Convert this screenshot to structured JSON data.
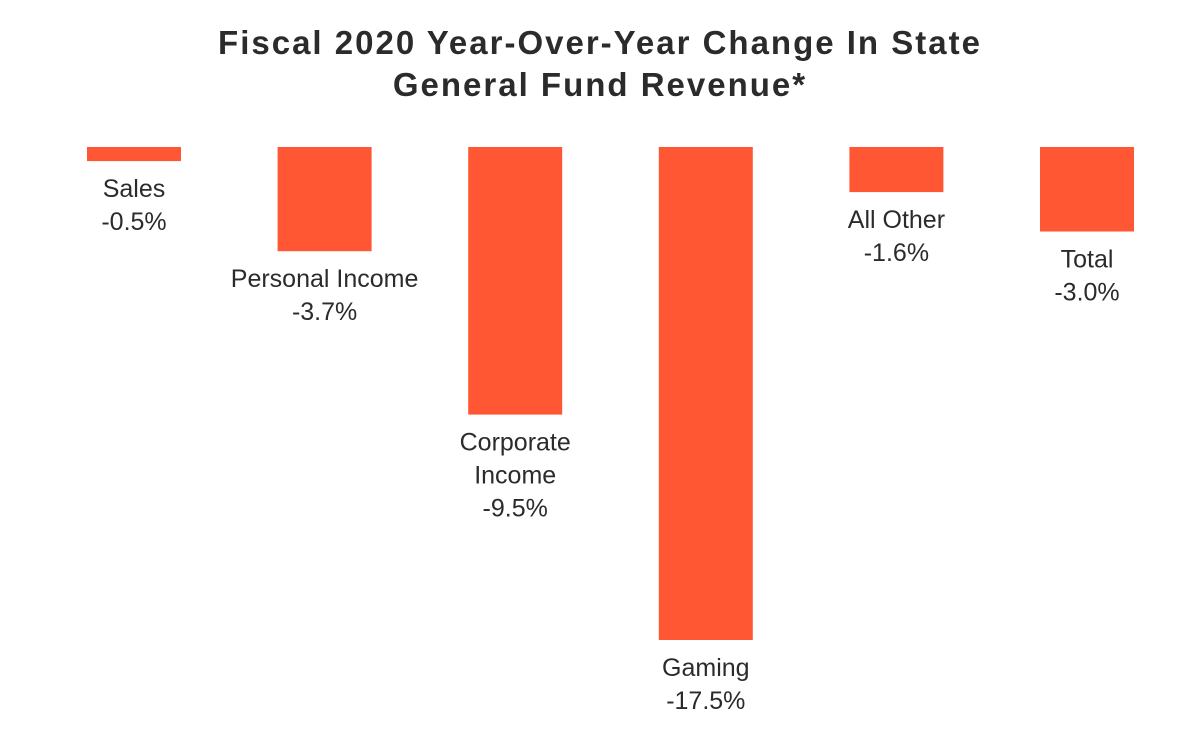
{
  "title_line1": "Fiscal 2020 Year-Over-Year Change In State",
  "title_line2": "General Fund Revenue*",
  "colors": {
    "bar": "#ff5733",
    "text": "#2b2b2b"
  },
  "chart_data": {
    "type": "bar",
    "title": "Fiscal 2020 Year-Over-Year Change In State General Fund Revenue*",
    "categories": [
      [
        "Sales"
      ],
      [
        "Personal Income"
      ],
      [
        "Corporate",
        "Income"
      ],
      [
        "Gaming"
      ],
      [
        "All Other"
      ],
      [
        "Total"
      ]
    ],
    "values": [
      -0.5,
      -3.7,
      -9.5,
      -17.5,
      -1.6,
      -3.0
    ],
    "value_labels": [
      "-0.5%",
      "-3.7%",
      "-9.5%",
      "-17.5%",
      "-1.6%",
      "-3.0%"
    ],
    "ylim": [
      -17.5,
      0
    ],
    "grid": false,
    "legend": "none"
  }
}
